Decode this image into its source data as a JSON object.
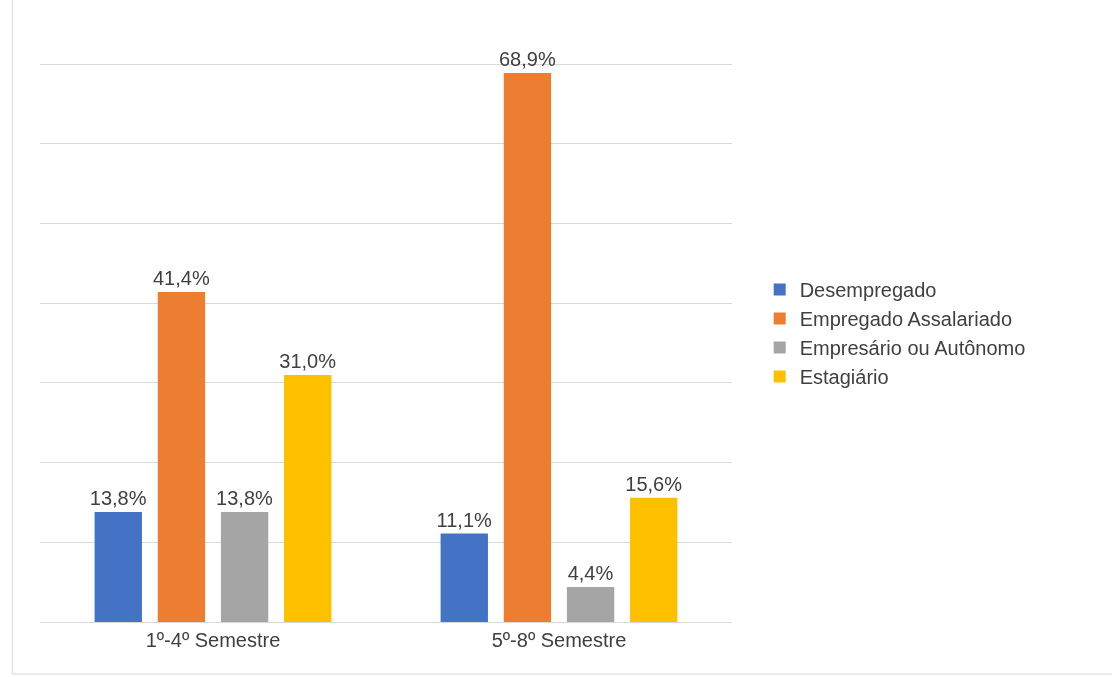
{
  "chart_data": {
    "type": "bar",
    "categories": [
      "1º-4º Semestre",
      "5º-8º Semestre"
    ],
    "series": [
      {
        "name": "Desempregado",
        "color": "#4472c4",
        "values": [
          13.8,
          11.1
        ],
        "value_labels": [
          "13,8%",
          "11,1%"
        ]
      },
      {
        "name": "Empregado Assalariado",
        "color": "#ed7d31",
        "values": [
          41.4,
          68.9
        ],
        "value_labels": [
          "41,4%",
          "68,9%"
        ]
      },
      {
        "name": "Empresário ou Autônomo",
        "color": "#a5a5a5",
        "values": [
          13.8,
          4.4
        ],
        "value_labels": [
          "13,8%",
          "4,4%"
        ]
      },
      {
        "name": "Estagiário",
        "color": "#ffc000",
        "values": [
          31.0,
          15.6
        ],
        "value_labels": [
          "31,0%",
          "15,6%"
        ]
      }
    ],
    "grid": "y",
    "legend": "right",
    "tick_labels": "x"
  }
}
